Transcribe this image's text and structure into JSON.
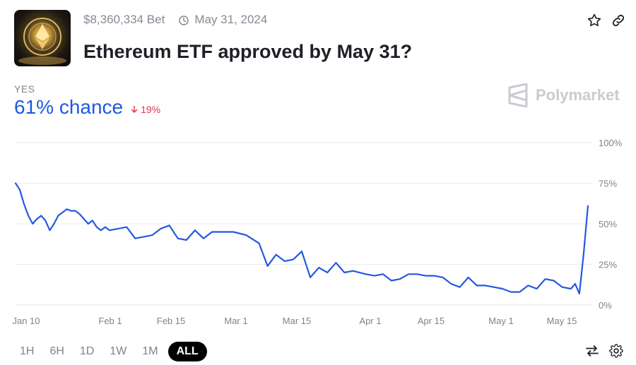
{
  "market": {
    "bet_volume": "$8,360,334 Bet",
    "end_date": "May 31, 2024",
    "title": "Ethereum ETF approved by May 31?",
    "outcome_label": "YES",
    "chance_text": "61% chance",
    "change_text": "19%",
    "change_direction": "down",
    "brand": "Polymarket"
  },
  "icons": {
    "clock": "clock-icon",
    "favorite": "star-icon",
    "share": "link-icon",
    "trend": "arrow-down-icon",
    "swap": "swap-arrows-icon",
    "settings": "gear-icon",
    "logo": "polymarket-logo-icon"
  },
  "colors": {
    "line": "#2458e3",
    "accent": "#1f58e2",
    "negative": "#e2374a",
    "grid": "#ececec"
  },
  "time_ranges": [
    {
      "label": "1H",
      "active": false
    },
    {
      "label": "6H",
      "active": false
    },
    {
      "label": "1D",
      "active": false
    },
    {
      "label": "1W",
      "active": false
    },
    {
      "label": "1M",
      "active": false
    },
    {
      "label": "ALL",
      "active": true
    }
  ],
  "chart_data": {
    "type": "line",
    "x_tick_labels": [
      "Jan 10",
      "Feb 1",
      "Feb 15",
      "Mar 1",
      "Mar 15",
      "Apr 1",
      "Apr 15",
      "May 1",
      "May 15"
    ],
    "y_tick_labels": [
      "100%",
      "75%",
      "50%",
      "25%",
      "0%"
    ],
    "ylim": [
      0,
      100
    ],
    "xlim": [
      "2024-01-10",
      "2024-05-23"
    ],
    "grid": true,
    "y_axis_side": "right",
    "series": [
      {
        "x": [
          "2024-01-10",
          "2024-01-11",
          "2024-01-12",
          "2024-01-13",
          "2024-01-14",
          "2024-01-15",
          "2024-01-16",
          "2024-01-17",
          "2024-01-18",
          "2024-01-19",
          "2024-01-20",
          "2024-01-21",
          "2024-01-22",
          "2024-01-23",
          "2024-01-24",
          "2024-01-25",
          "2024-01-26",
          "2024-01-27",
          "2024-01-28",
          "2024-01-29",
          "2024-01-30",
          "2024-01-31",
          "2024-02-01",
          "2024-02-03",
          "2024-02-05",
          "2024-02-07",
          "2024-02-09",
          "2024-02-11",
          "2024-02-13",
          "2024-02-15",
          "2024-02-17",
          "2024-02-19",
          "2024-02-21",
          "2024-02-23",
          "2024-02-25",
          "2024-02-27",
          "2024-03-01",
          "2024-03-04",
          "2024-03-07",
          "2024-03-09",
          "2024-03-11",
          "2024-03-13",
          "2024-03-15",
          "2024-03-17",
          "2024-03-19",
          "2024-03-21",
          "2024-03-23",
          "2024-03-25",
          "2024-03-27",
          "2024-03-29",
          "2024-04-01",
          "2024-04-03",
          "2024-04-05",
          "2024-04-07",
          "2024-04-09",
          "2024-04-11",
          "2024-04-13",
          "2024-04-15",
          "2024-04-17",
          "2024-04-19",
          "2024-04-21",
          "2024-04-23",
          "2024-04-25",
          "2024-04-27",
          "2024-04-29",
          "2024-05-01",
          "2024-05-03",
          "2024-05-05",
          "2024-05-07",
          "2024-05-09",
          "2024-05-11",
          "2024-05-13",
          "2024-05-15",
          "2024-05-17",
          "2024-05-19",
          "2024-05-20",
          "2024-05-21",
          "2024-05-22",
          "2024-05-23"
        ],
        "values": [
          75,
          71,
          62,
          55,
          50,
          53,
          55,
          52,
          46,
          50,
          55,
          57,
          59,
          58,
          58,
          56,
          53,
          50,
          52,
          48,
          46,
          48,
          46,
          47,
          48,
          41,
          42,
          43,
          47,
          49,
          41,
          40,
          46,
          41,
          45,
          45,
          45,
          43,
          38,
          24,
          31,
          27,
          28,
          33,
          17,
          23,
          20,
          26,
          20,
          21,
          19,
          18,
          19,
          15,
          16,
          19,
          19,
          18,
          18,
          17,
          13,
          11,
          17,
          12,
          12,
          11,
          10,
          8,
          8,
          12,
          10,
          16,
          15,
          11,
          10,
          13,
          7,
          32,
          61
        ]
      }
    ]
  }
}
